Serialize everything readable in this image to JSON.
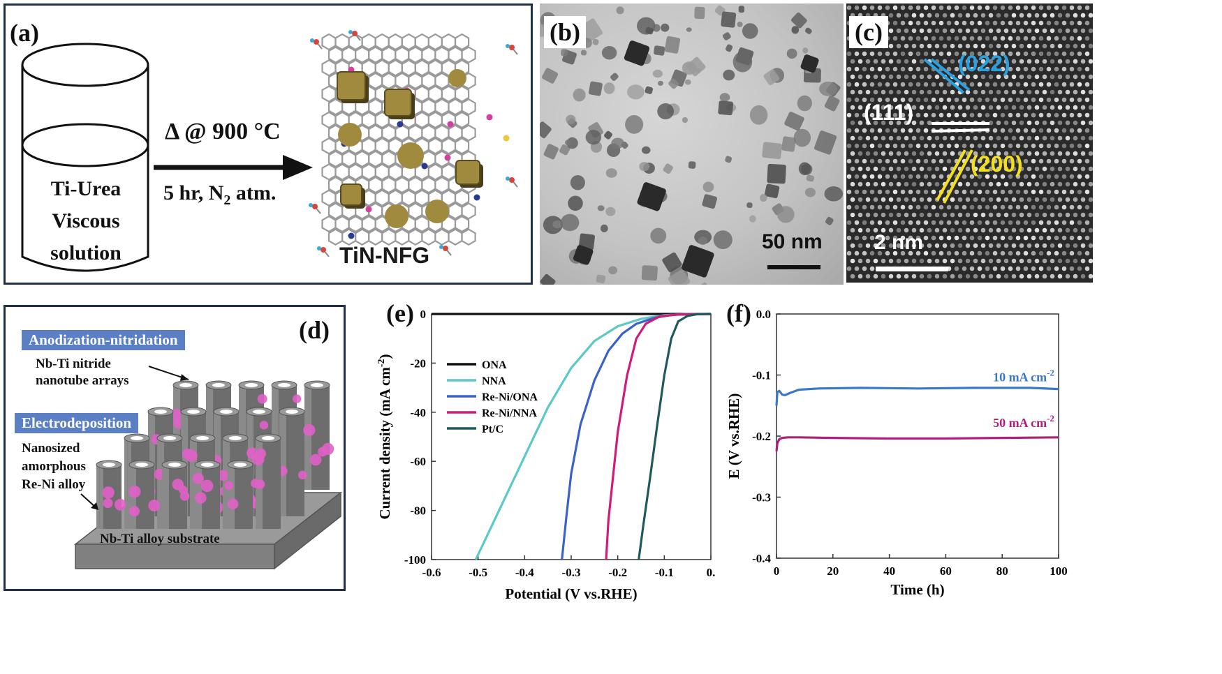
{
  "panel_a": {
    "letter": "(a)",
    "beaker_lines": [
      "Ti-Urea",
      "Viscous",
      "solution"
    ],
    "arrow_top": "Δ @ 900 °C",
    "arrow_bottom_prefix": "5 hr, N",
    "arrow_bottom_sub": "2",
    "arrow_bottom_suffix": " atm.",
    "product_label": "TiN-NFG",
    "colors": {
      "particle": "#a08a3e",
      "lattice": "#9a9a9a",
      "frame": "#1f3048"
    }
  },
  "panel_b": {
    "letter": "(b)",
    "scale_label": "50 nm"
  },
  "panel_c": {
    "letter": "(c)",
    "plane_022": "(022)",
    "plane_111": "(111)",
    "plane_200": "(200)",
    "scale_label": "2 nm",
    "colors": {
      "p022": "#2aa0e0",
      "p111": "#ffffff",
      "p200": "#f4e01a"
    }
  },
  "panel_d": {
    "letter": "(d)",
    "tag1": "Anodization-nitridation",
    "tag2": "Electrodeposition",
    "label_nitride": [
      "Nb-Ti nitride",
      "nanotube arrays"
    ],
    "label_alloy": [
      "Nanosized",
      "amorphous",
      "Re-Ni alloy"
    ],
    "substrate": "Nb-Ti alloy substrate",
    "colors": {
      "tag_bg": "#5b7fc4",
      "tube": "#6d6d6d",
      "sphere": "#e060c8"
    }
  },
  "chart_data": [
    {
      "panel": "(e)",
      "type": "line",
      "xlabel": "Potential (V vs.RHE)",
      "ylabel_main": "Current density (mA cm",
      "ylabel_sup": "-2",
      "ylabel_end": ")",
      "xlim": [
        -0.6,
        0.0
      ],
      "ylim": [
        -100,
        0
      ],
      "xticks": [
        "-0.6",
        "-0.5",
        "-0.4",
        "-0.3",
        "-0.2",
        "-0.1",
        "0."
      ],
      "xtick_values": [
        -0.6,
        -0.5,
        -0.4,
        -0.3,
        -0.2,
        -0.1,
        0.0
      ],
      "yticks": [
        "0",
        "-20",
        "-40",
        "-60",
        "-80",
        "-100"
      ],
      "ytick_values": [
        0,
        -20,
        -40,
        -60,
        -80,
        -100
      ],
      "legend_position": "left",
      "series": [
        {
          "name": "ONA",
          "color": "#111111",
          "points": [
            [
              -0.6,
              0
            ],
            [
              0.0,
              0
            ]
          ]
        },
        {
          "name": "NNA",
          "color": "#5cc8c8",
          "points": [
            [
              -0.505,
              -100
            ],
            [
              -0.45,
              -78
            ],
            [
              -0.4,
              -58
            ],
            [
              -0.35,
              -38
            ],
            [
              -0.3,
              -22
            ],
            [
              -0.25,
              -11
            ],
            [
              -0.2,
              -5
            ],
            [
              -0.15,
              -2
            ],
            [
              -0.1,
              -0.5
            ],
            [
              -0.05,
              0
            ],
            [
              0.0,
              0
            ]
          ]
        },
        {
          "name": "Re-Ni/ONA",
          "color": "#3b62c8",
          "points": [
            [
              -0.32,
              -100
            ],
            [
              -0.31,
              -82
            ],
            [
              -0.3,
              -65
            ],
            [
              -0.28,
              -45
            ],
            [
              -0.25,
              -27
            ],
            [
              -0.22,
              -15
            ],
            [
              -0.19,
              -8
            ],
            [
              -0.16,
              -4
            ],
            [
              -0.12,
              -1.5
            ],
            [
              -0.08,
              -0.3
            ],
            [
              0.0,
              0
            ]
          ]
        },
        {
          "name": "Re-Ni/NNA",
          "color": "#d01c78",
          "points": [
            [
              -0.225,
              -100
            ],
            [
              -0.22,
              -84
            ],
            [
              -0.21,
              -66
            ],
            [
              -0.2,
              -48
            ],
            [
              -0.18,
              -25
            ],
            [
              -0.16,
              -10
            ],
            [
              -0.14,
              -4
            ],
            [
              -0.11,
              -1
            ],
            [
              -0.07,
              -0.2
            ],
            [
              0.0,
              0
            ]
          ]
        },
        {
          "name": "Pt/C",
          "color": "#1f5a5a",
          "points": [
            [
              -0.155,
              -100
            ],
            [
              -0.145,
              -86
            ],
            [
              -0.13,
              -66
            ],
            [
              -0.115,
              -45
            ],
            [
              -0.1,
              -25
            ],
            [
              -0.085,
              -10
            ],
            [
              -0.07,
              -3
            ],
            [
              -0.05,
              -0.8
            ],
            [
              -0.03,
              -0.1
            ],
            [
              0.0,
              0
            ]
          ]
        }
      ]
    },
    {
      "panel": "(f)",
      "type": "line",
      "xlabel": "Time (h)",
      "ylabel": "E (V vs.RHE)",
      "xlim": [
        0,
        100
      ],
      "ylim": [
        -0.4,
        0.0
      ],
      "xticks": [
        "0",
        "20",
        "40",
        "60",
        "80",
        "100"
      ],
      "xtick_values": [
        0,
        20,
        40,
        60,
        80,
        100
      ],
      "yticks": [
        "0.0",
        "-0.1",
        "-0.2",
        "-0.3",
        "-0.4"
      ],
      "ytick_values": [
        0.0,
        -0.1,
        -0.2,
        -0.3,
        -0.4
      ],
      "annotations": [
        {
          "text": "10 mA cm",
          "sup": "-2",
          "color": "#3b78c8"
        },
        {
          "text": "50 mA cm",
          "sup": "-2",
          "color": "#b0207a"
        }
      ],
      "series": [
        {
          "color": "#3b78c8",
          "points": [
            [
              0,
              -0.15
            ],
            [
              0.3,
              -0.128
            ],
            [
              1,
              -0.126
            ],
            [
              2,
              -0.132
            ],
            [
              3,
              -0.133
            ],
            [
              5,
              -0.129
            ],
            [
              8,
              -0.124
            ],
            [
              15,
              -0.122
            ],
            [
              30,
              -0.121
            ],
            [
              50,
              -0.122
            ],
            [
              70,
              -0.121
            ],
            [
              90,
              -0.121
            ],
            [
              100,
              -0.123
            ]
          ]
        },
        {
          "color": "#b0207a",
          "points": [
            [
              0,
              -0.225
            ],
            [
              0.3,
              -0.212
            ],
            [
              1,
              -0.205
            ],
            [
              2,
              -0.203
            ],
            [
              4,
              -0.202
            ],
            [
              8,
              -0.202
            ],
            [
              20,
              -0.203
            ],
            [
              40,
              -0.204
            ],
            [
              60,
              -0.204
            ],
            [
              80,
              -0.203
            ],
            [
              100,
              -0.202
            ]
          ]
        }
      ]
    }
  ]
}
